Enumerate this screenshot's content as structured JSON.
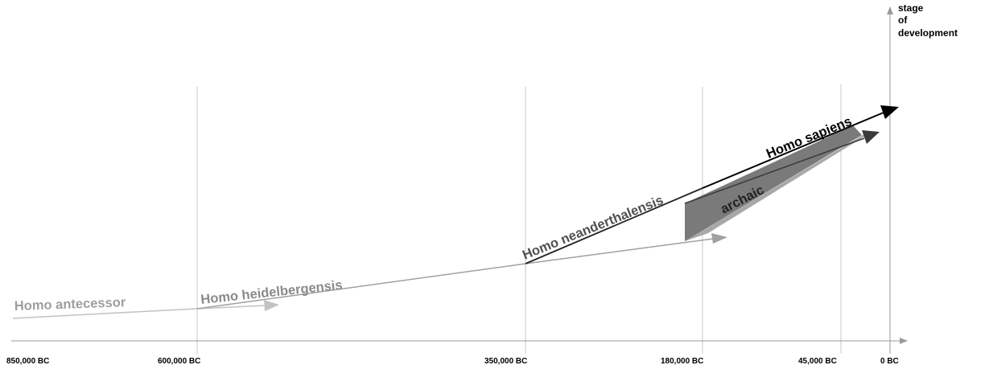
{
  "axis": {
    "x_ticks": [
      "850,000 BC",
      "600,000 BC",
      "350,000 BC",
      "180,000 BC",
      "45,000 BC",
      "0 BC"
    ],
    "y_title_lines": [
      "stage",
      "of",
      "development"
    ]
  },
  "species": {
    "antecessor": "Homo antecessor",
    "heidelbergensis": "Homo heidelbergensis",
    "neanderthalensis": "Homo neanderthalensis",
    "sapiens": "Homo sapiens",
    "archaic": "archaic"
  },
  "colors": {
    "antecessor": "#c2c2c2",
    "heidelbergensis": "#9a9a9a",
    "neanderthalensis": "#222222",
    "sapiens": "#000000",
    "archaic": "#707070",
    "gridline": "#c8c8c8",
    "axis": "#9a9a9a"
  }
}
